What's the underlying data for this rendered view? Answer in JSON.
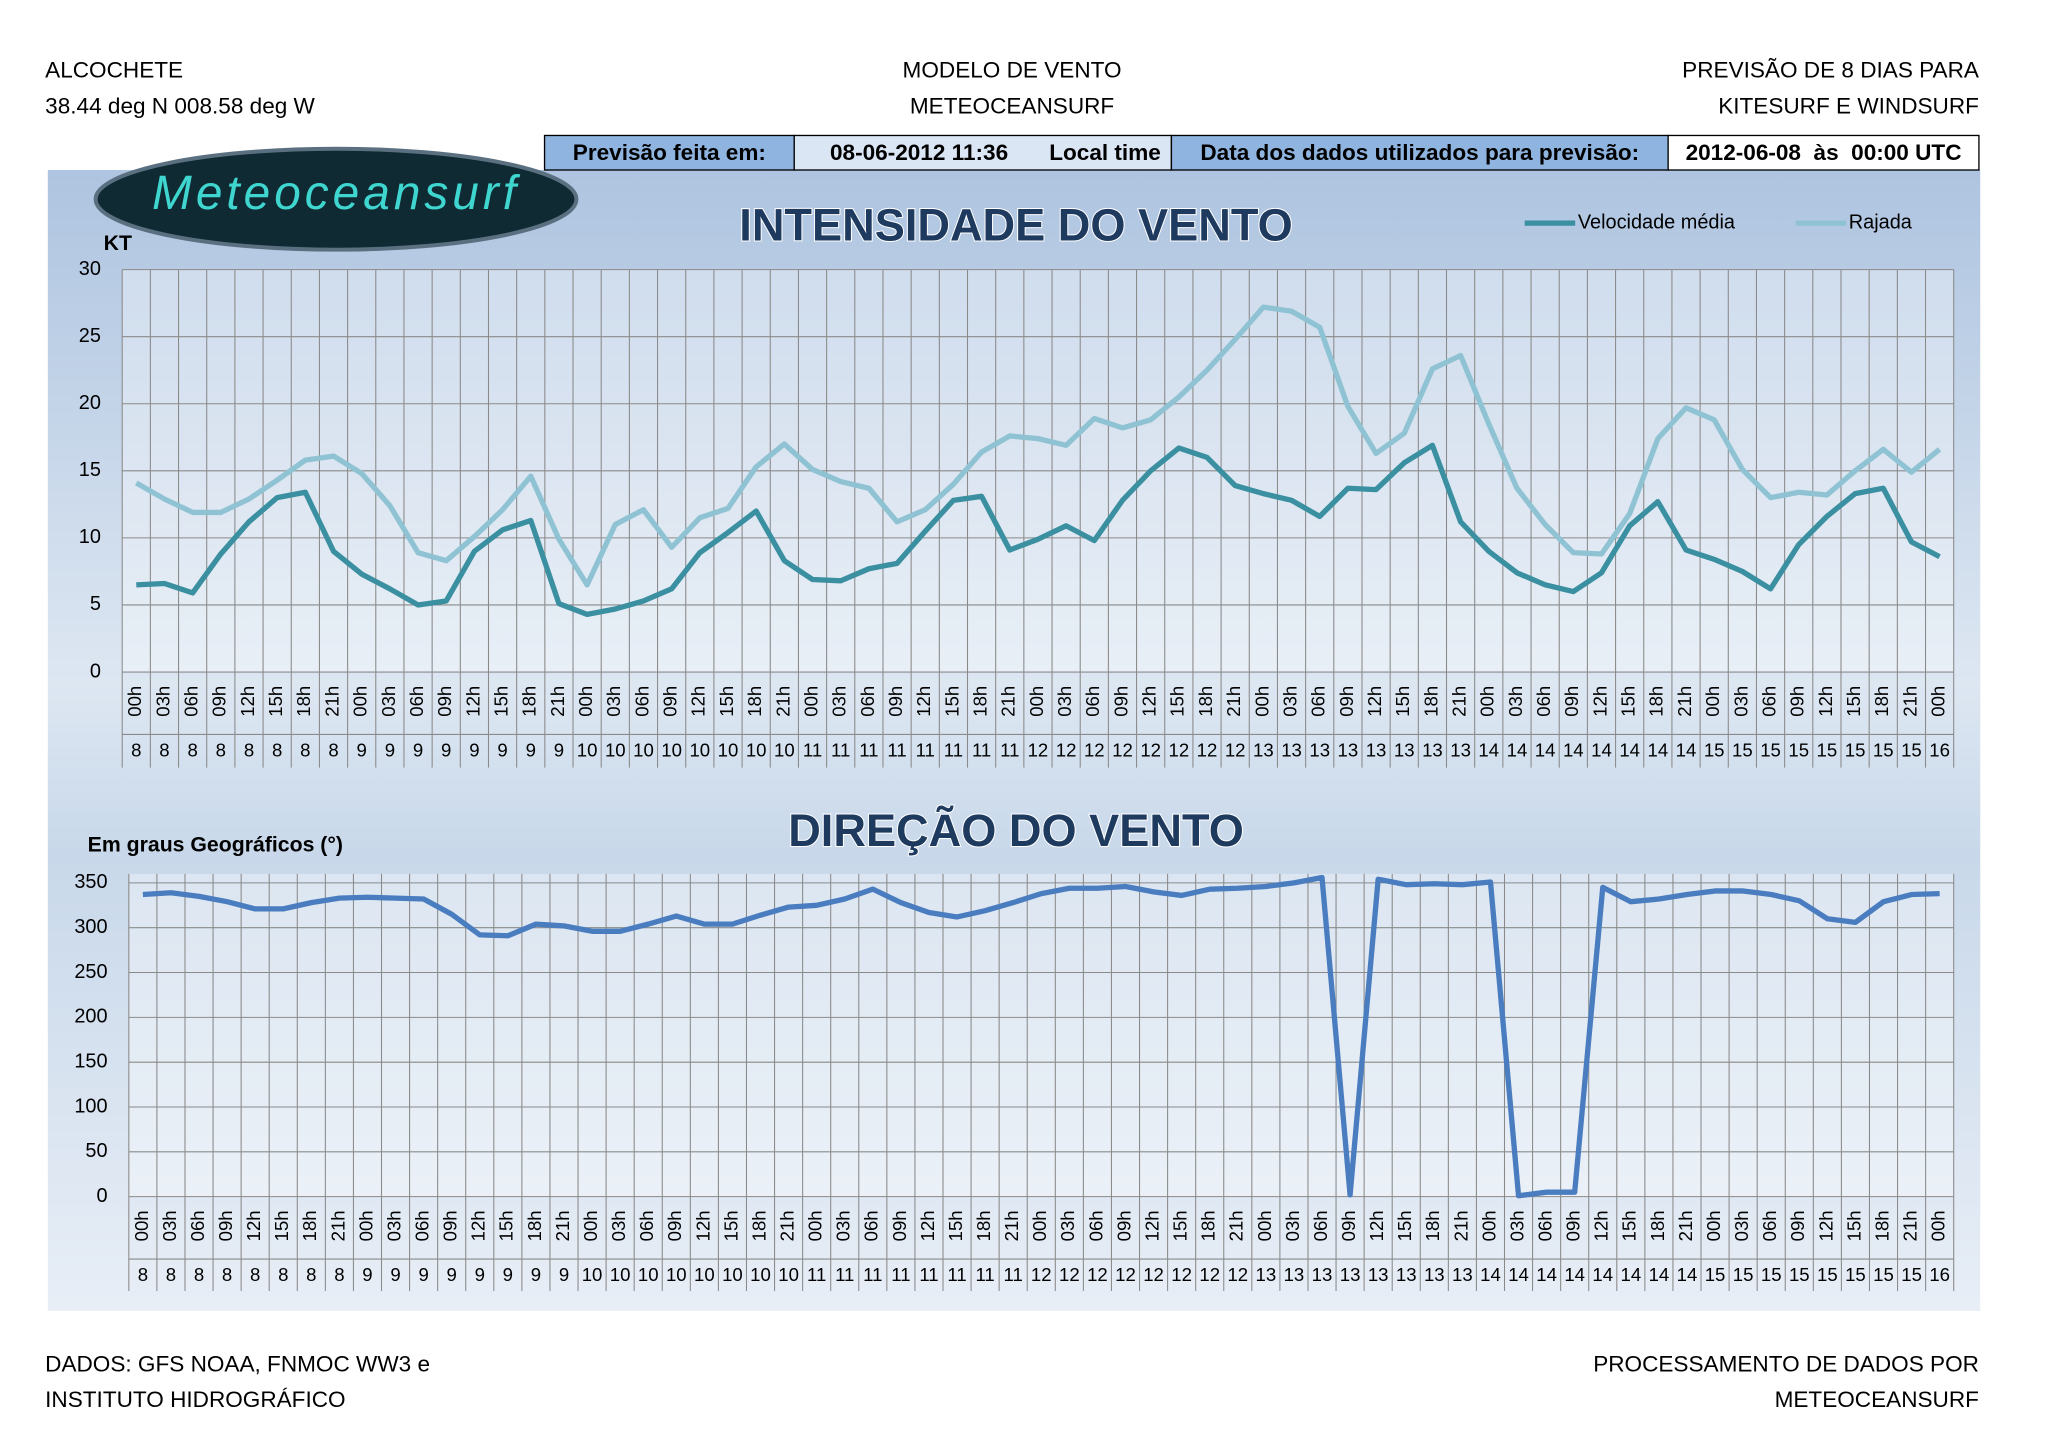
{
  "header": {
    "left": [
      "ALCOCHETE",
      "38.44 deg N 008.58 deg W"
    ],
    "center": [
      "MODELO DE VENTO",
      "METEOCEANSURF"
    ],
    "right": [
      "PREVISÃO DE 8 DIAS PARA",
      "KITESURF E WINDSURF"
    ]
  },
  "info_bar": {
    "made_label": "Previsão feita em:",
    "made_value": "08-06-2012 11:36",
    "made_zone": "Local time",
    "data_label": "Data dos dados utilizados para previsão:",
    "data_value": "2012-06-08  às  00:00 UTC"
  },
  "logo": "Meteoceansurf",
  "chart_data": [
    {
      "type": "line",
      "title": "INTENSIDADE DO VENTO",
      "y_label": "KT",
      "categories": [
        "00h",
        "03h",
        "06h",
        "09h",
        "12h",
        "15h",
        "18h",
        "21h",
        "00h",
        "03h",
        "06h",
        "09h",
        "12h",
        "15h",
        "18h",
        "21h",
        "00h",
        "03h",
        "06h",
        "09h",
        "12h",
        "15h",
        "18h",
        "21h",
        "00h",
        "03h",
        "06h",
        "09h",
        "12h",
        "15h",
        "18h",
        "21h",
        "00h",
        "03h",
        "06h",
        "09h",
        "12h",
        "15h",
        "18h",
        "21h",
        "00h",
        "03h",
        "06h",
        "09h",
        "12h",
        "15h",
        "18h",
        "21h",
        "00h",
        "03h",
        "06h",
        "09h",
        "12h",
        "15h",
        "18h",
        "21h",
        "00h",
        "03h",
        "06h",
        "09h",
        "12h",
        "15h",
        "18h",
        "21h",
        "00h"
      ],
      "days": [
        "8",
        "8",
        "8",
        "8",
        "8",
        "8",
        "8",
        "8",
        "9",
        "9",
        "9",
        "9",
        "9",
        "9",
        "9",
        "9",
        "10",
        "10",
        "10",
        "10",
        "10",
        "10",
        "10",
        "10",
        "11",
        "11",
        "11",
        "11",
        "11",
        "11",
        "11",
        "11",
        "12",
        "12",
        "12",
        "12",
        "12",
        "12",
        "12",
        "12",
        "13",
        "13",
        "13",
        "13",
        "13",
        "13",
        "13",
        "13",
        "14",
        "14",
        "14",
        "14",
        "14",
        "14",
        "14",
        "14",
        "15",
        "15",
        "15",
        "15",
        "15",
        "15",
        "15",
        "15",
        "16"
      ],
      "series": [
        {
          "name": "Velocidade média",
          "color": "#3a8fa0",
          "values": [
            6.5,
            6.6,
            5.9,
            8.8,
            11.2,
            13.0,
            13.4,
            9.0,
            7.3,
            6.2,
            5.0,
            5.3,
            9.0,
            10.6,
            11.3,
            5.1,
            4.3,
            4.7,
            5.3,
            6.2,
            8.9,
            10.4,
            12.0,
            8.3,
            6.9,
            6.8,
            7.7,
            8.1,
            10.5,
            12.8,
            13.1,
            9.1,
            9.9,
            10.9,
            9.8,
            12.8,
            15.0,
            16.7,
            16.0,
            13.9,
            13.3,
            12.8,
            11.6,
            13.7,
            13.6,
            15.6,
            16.9,
            11.2,
            9.0,
            7.4,
            6.5,
            6.0,
            7.4,
            10.9,
            12.7,
            9.1,
            8.4,
            7.5,
            6.2,
            9.5,
            11.6,
            13.3,
            13.7,
            9.7,
            8.6
          ]
        },
        {
          "name": "Rajada",
          "color": "#8fc3d3",
          "values": [
            14.1,
            12.9,
            11.9,
            11.9,
            12.9,
            14.3,
            15.8,
            16.1,
            14.8,
            12.4,
            8.9,
            8.3,
            10.1,
            12.1,
            14.6,
            9.9,
            6.5,
            11.0,
            12.1,
            9.3,
            11.5,
            12.2,
            15.3,
            17.0,
            15.1,
            14.2,
            13.7,
            11.2,
            12.1,
            14.0,
            16.4,
            17.6,
            17.4,
            16.9,
            18.9,
            18.2,
            18.8,
            20.5,
            22.5,
            24.8,
            27.2,
            26.9,
            25.7,
            19.8,
            16.3,
            17.8,
            22.6,
            23.6,
            18.5,
            13.7,
            11.0,
            8.9,
            8.8,
            11.8,
            17.4,
            19.7,
            18.8,
            15.1,
            13.0,
            13.4,
            13.2,
            15.0,
            16.6,
            14.9,
            16.6
          ]
        }
      ],
      "ylim": [
        0,
        30
      ],
      "yticks": [
        0,
        5,
        10,
        15,
        20,
        25,
        30
      ],
      "grid": true,
      "legend": "upper right"
    },
    {
      "type": "line",
      "title": "DIREÇÃO DO VENTO",
      "y_label": "Em graus Geográficos (°)",
      "categories": [
        "00h",
        "03h",
        "06h",
        "09h",
        "12h",
        "15h",
        "18h",
        "21h",
        "00h",
        "03h",
        "06h",
        "09h",
        "12h",
        "15h",
        "18h",
        "21h",
        "00h",
        "03h",
        "06h",
        "09h",
        "12h",
        "15h",
        "18h",
        "21h",
        "00h",
        "03h",
        "06h",
        "09h",
        "12h",
        "15h",
        "18h",
        "21h",
        "00h",
        "03h",
        "06h",
        "09h",
        "12h",
        "15h",
        "18h",
        "21h",
        "00h",
        "03h",
        "06h",
        "09h",
        "12h",
        "15h",
        "18h",
        "21h",
        "00h",
        "03h",
        "06h",
        "09h",
        "12h",
        "15h",
        "18h",
        "21h",
        "00h",
        "03h",
        "06h",
        "09h",
        "12h",
        "15h",
        "18h",
        "21h",
        "00h"
      ],
      "days": [
        "8",
        "8",
        "8",
        "8",
        "8",
        "8",
        "8",
        "8",
        "9",
        "9",
        "9",
        "9",
        "9",
        "9",
        "9",
        "9",
        "10",
        "10",
        "10",
        "10",
        "10",
        "10",
        "10",
        "10",
        "11",
        "11",
        "11",
        "11",
        "11",
        "11",
        "11",
        "11",
        "12",
        "12",
        "12",
        "12",
        "12",
        "12",
        "12",
        "12",
        "13",
        "13",
        "13",
        "13",
        "13",
        "13",
        "13",
        "13",
        "14",
        "14",
        "14",
        "14",
        "14",
        "14",
        "14",
        "14",
        "15",
        "15",
        "15",
        "15",
        "15",
        "15",
        "15",
        "15",
        "16"
      ],
      "series": [
        {
          "color": "#4a7dbf",
          "values": [
            337,
            339,
            335,
            329,
            321,
            321,
            328,
            333,
            334,
            333,
            332,
            315,
            292,
            291,
            304,
            302,
            296,
            296,
            304,
            313,
            304,
            304,
            314,
            323,
            325,
            332,
            343,
            328,
            317,
            312,
            319,
            328,
            338,
            344,
            344,
            346,
            340,
            336,
            343,
            344,
            346,
            350,
            356,
            2,
            354,
            348,
            349,
            348,
            351,
            1,
            5,
            5,
            345,
            329,
            332,
            337,
            341,
            341,
            337,
            330,
            310,
            306,
            329,
            337,
            338
          ]
        }
      ],
      "ylim": [
        0,
        360
      ],
      "yticks": [
        0,
        50,
        100,
        150,
        200,
        250,
        300,
        350
      ],
      "grid": true
    }
  ],
  "footer": {
    "left": [
      "DADOS: GFS NOAA, FNMOC WW3 e",
      "INSTITUTO HIDROGRÁFICO"
    ],
    "right": [
      "PROCESSAMENTO DE DADOS POR",
      "METEOCEANSURF"
    ]
  }
}
